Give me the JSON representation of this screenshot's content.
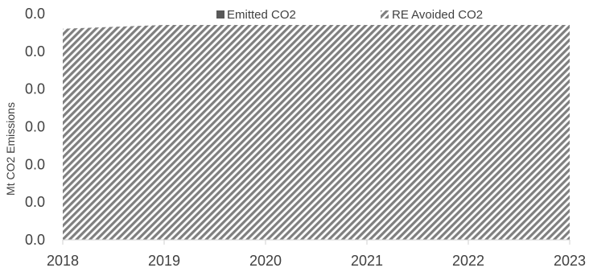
{
  "chart_data": {
    "type": "area",
    "ylabel": "Mt CO2 Emissions",
    "x": [
      2018,
      2019,
      2020,
      2021,
      2022,
      2023
    ],
    "x_tick_labels": [
      "2018",
      "2019",
      "2020",
      "2021",
      "2022",
      "2023"
    ],
    "y_tick_labels": [
      "0.0",
      "0.0",
      "0.0",
      "0.0",
      "0.0",
      "0.0",
      "0.0"
    ],
    "ylim": [
      0,
      6
    ],
    "series": [
      {
        "name": "Emitted CO2",
        "values": [
          0,
          0,
          0,
          0,
          0,
          0
        ],
        "color": "#595959",
        "pattern": "solid"
      },
      {
        "name": "RE Avoided CO2",
        "values": [
          5.6,
          5.7,
          5.7,
          5.7,
          5.7,
          5.7
        ],
        "color": "#7f7f7f",
        "pattern": "diagonal-hatch"
      }
    ],
    "legend_position": "top",
    "grid": false
  }
}
